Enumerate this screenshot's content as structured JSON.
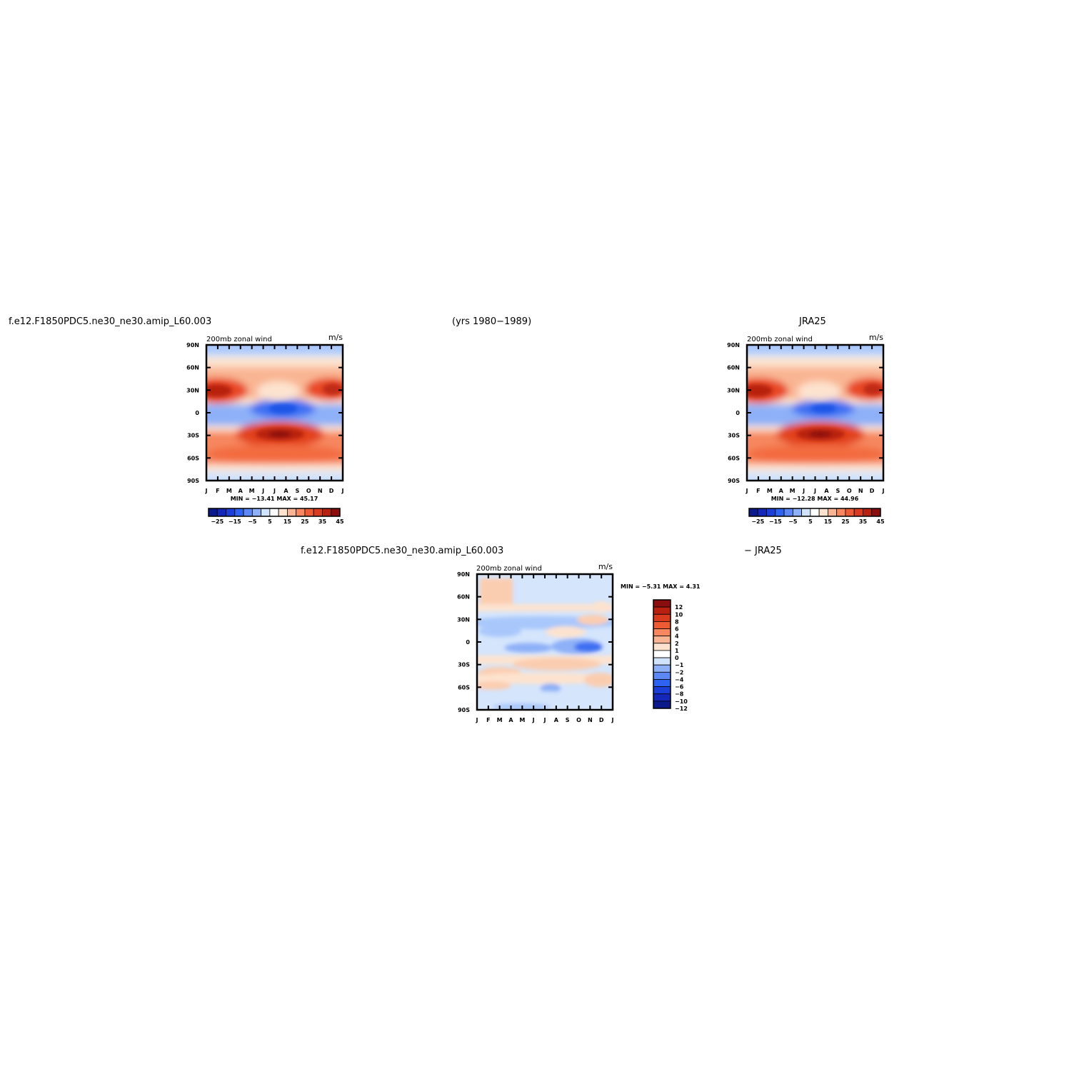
{
  "header": {
    "case_name": "f.e12.F1850PDC5.ne30_ne30.amip_L60.003",
    "years": "(yrs 1980−1989)",
    "obs_name": "JRA25",
    "diff_case_name": "f.e12.F1850PDC5.ne30_ne30.amip_L60.003",
    "diff_obs_name": "− JRA25"
  },
  "colors": {
    "blue_dark": "#0a1a8a",
    "blue_mid": "#2e63f2",
    "blue_light": "#cfe3fb",
    "red_light": "#fde3cf",
    "red_mid": "#f56a3f",
    "red_dark": "#8a0e0e"
  },
  "chart_data": [
    {
      "type": "heatmap",
      "title": "200mb zonal wind",
      "units": "m/s",
      "x_ticks": [
        "J",
        "F",
        "M",
        "A",
        "M",
        "J",
        "J",
        "A",
        "S",
        "O",
        "N",
        "D",
        "J"
      ],
      "y_ticks": [
        "90N",
        "60N",
        "30N",
        "0",
        "30S",
        "60S",
        "90S"
      ],
      "ylim": [
        -90,
        90
      ],
      "stats": "MIN = −13.41 MAX =  45.17",
      "min": -13.41,
      "max": 45.17,
      "colorbar_labels": [
        "−25",
        "−15",
        "−5",
        "5",
        "15",
        "25",
        "35",
        "45"
      ],
      "colorbar_placement": "bottom"
    },
    {
      "type": "heatmap",
      "title": "200mb zonal wind",
      "units": "m/s",
      "x_ticks": [
        "J",
        "F",
        "M",
        "A",
        "M",
        "J",
        "J",
        "A",
        "S",
        "O",
        "N",
        "D",
        "J"
      ],
      "y_ticks": [
        "90N",
        "60N",
        "30N",
        "0",
        "30S",
        "60S",
        "90S"
      ],
      "ylim": [
        -90,
        90
      ],
      "stats": "MIN = −12.28 MAX =  44.96",
      "min": -12.28,
      "max": 44.96,
      "colorbar_labels": [
        "−25",
        "−15",
        "−5",
        "5",
        "15",
        "25",
        "35",
        "45"
      ],
      "colorbar_placement": "bottom"
    },
    {
      "type": "heatmap",
      "title": "200mb zonal wind",
      "units": "m/s",
      "x_ticks": [
        "J",
        "F",
        "M",
        "A",
        "M",
        "J",
        "J",
        "A",
        "S",
        "O",
        "N",
        "D",
        "J"
      ],
      "y_ticks": [
        "90N",
        "60N",
        "30N",
        "0",
        "30S",
        "60S",
        "90S"
      ],
      "ylim": [
        -90,
        90
      ],
      "stats": "MIN =  −5.31 MAX =   4.31",
      "min": -5.31,
      "max": 4.31,
      "colorbar_labels": [
        "12",
        "10",
        "8",
        "6",
        "4",
        "2",
        "1",
        "0",
        "−1",
        "−2",
        "−4",
        "−6",
        "−8",
        "−10",
        "−12"
      ],
      "colorbar_placement": "right"
    }
  ]
}
